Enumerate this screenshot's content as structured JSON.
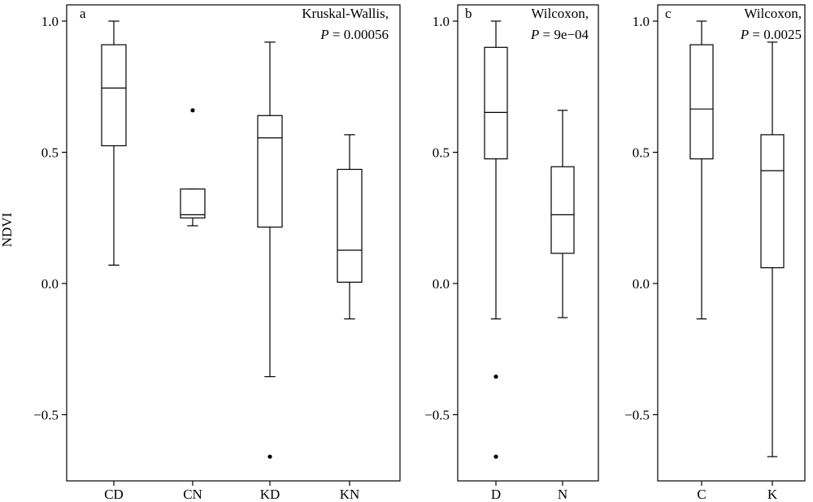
{
  "chart_data": [
    {
      "type": "boxplot",
      "panel_label": "a",
      "test_name": "Kruskal-Wallis,",
      "p_label": "P",
      "p_value": "= 0.00056",
      "ylabel": "NDVI",
      "ylim": [
        -0.75,
        1.08
      ],
      "yticks": [
        -0.5,
        0.0,
        0.5,
        1.0
      ],
      "ytick_labels": [
        "−0.5",
        "0.0",
        "0.5",
        "1.0"
      ],
      "categories": [
        "CD",
        "CN",
        "KD",
        "KN"
      ],
      "boxes": [
        {
          "min": 0.07,
          "q1": 0.525,
          "median": 0.745,
          "q3": 0.91,
          "max": 1.0,
          "outliers": []
        },
        {
          "min": 0.22,
          "q1": 0.25,
          "median": 0.262,
          "q3": 0.36,
          "max": 0.36,
          "outliers": [
            0.66
          ]
        },
        {
          "min": -0.355,
          "q1": 0.215,
          "median": 0.555,
          "q3": 0.64,
          "max": 0.92,
          "outliers": [
            -0.66
          ]
        },
        {
          "min": -0.135,
          "q1": 0.005,
          "median": 0.127,
          "q3": 0.435,
          "max": 0.567,
          "outliers": []
        }
      ]
    },
    {
      "type": "boxplot",
      "panel_label": "b",
      "test_name": "Wilcoxon,",
      "p_label": "P",
      "p_value": "= 9e−04",
      "ylim": [
        -0.75,
        1.08
      ],
      "yticks": [
        -0.5,
        0.0,
        0.5,
        1.0
      ],
      "ytick_labels": [
        "−0.5",
        "0.0",
        "0.5",
        "1.0"
      ],
      "categories": [
        "D",
        "N"
      ],
      "boxes": [
        {
          "min": -0.135,
          "q1": 0.475,
          "median": 0.652,
          "q3": 0.9,
          "max": 1.0,
          "outliers": [
            -0.355,
            -0.66
          ]
        },
        {
          "min": -0.13,
          "q1": 0.115,
          "median": 0.262,
          "q3": 0.445,
          "max": 0.66,
          "outliers": []
        }
      ]
    },
    {
      "type": "boxplot",
      "panel_label": "c",
      "test_name": "Wilcoxon,",
      "p_label": "P",
      "p_value": "= 0.0025",
      "ylim": [
        -0.75,
        1.08
      ],
      "yticks": [
        -0.5,
        0.0,
        0.5,
        1.0
      ],
      "ytick_labels": [
        "−0.5",
        "0.0",
        "0.5",
        "1.0"
      ],
      "categories": [
        "C",
        "K"
      ],
      "boxes": [
        {
          "min": -0.135,
          "q1": 0.475,
          "median": 0.665,
          "q3": 0.91,
          "max": 1.0,
          "outliers": []
        },
        {
          "min": -0.66,
          "q1": 0.06,
          "median": 0.43,
          "q3": 0.567,
          "max": 0.92,
          "outliers": []
        }
      ]
    }
  ]
}
